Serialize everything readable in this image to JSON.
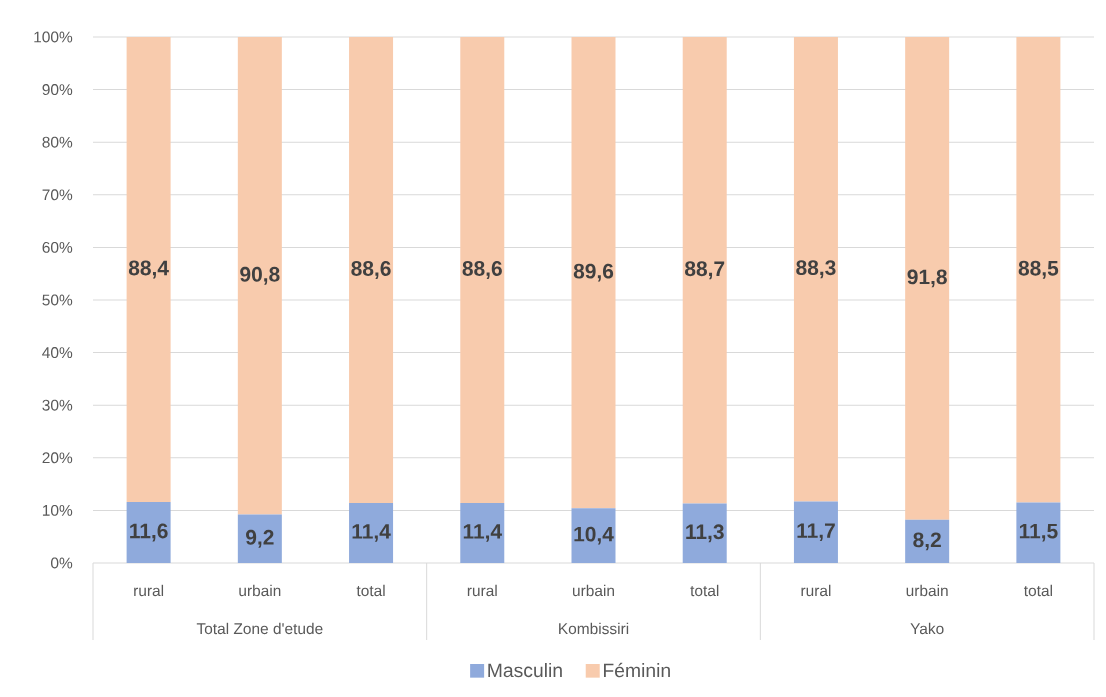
{
  "chart_data": {
    "type": "bar",
    "stacked": true,
    "categories": [
      "rural",
      "urbain",
      "total",
      "rural",
      "urbain",
      "total",
      "rural",
      "urbain",
      "total"
    ],
    "series": [
      {
        "name": "Masculin",
        "color": "#8faadc",
        "values": [
          11.6,
          9.2,
          11.4,
          11.4,
          10.4,
          11.3,
          11.7,
          8.2,
          11.5
        ],
        "value_labels": [
          "11,6",
          "9,2",
          "11,4",
          "11,4",
          "10,4",
          "11,3",
          "11,7",
          "8,2",
          "11,5"
        ]
      },
      {
        "name": "Féminin",
        "color": "#f8cbad",
        "values": [
          88.4,
          90.8,
          88.6,
          88.6,
          89.6,
          88.7,
          88.3,
          91.8,
          88.5
        ],
        "value_labels": [
          "88,4",
          "90,8",
          "88,6",
          "88,6",
          "89,6",
          "88,7",
          "88,3",
          "91,8",
          "88,5"
        ]
      }
    ],
    "ylim": [
      0,
      100
    ],
    "yticks": [
      {
        "value": 0,
        "label": "0%"
      },
      {
        "value": 10,
        "label": "10%"
      },
      {
        "value": 20,
        "label": "20%"
      },
      {
        "value": 30,
        "label": "30%"
      },
      {
        "value": 40,
        "label": "40%"
      },
      {
        "value": 50,
        "label": "50%"
      },
      {
        "value": 60,
        "label": "60%"
      },
      {
        "value": 70,
        "label": "70%"
      },
      {
        "value": 80,
        "label": "80%"
      },
      {
        "value": 90,
        "label": "90%"
      },
      {
        "value": 100,
        "label": "100%"
      }
    ],
    "grid": "y",
    "legend": "bottom",
    "annotations": [
      "Total Zone d'etude",
      "Kombissiri",
      "Yako"
    ]
  }
}
